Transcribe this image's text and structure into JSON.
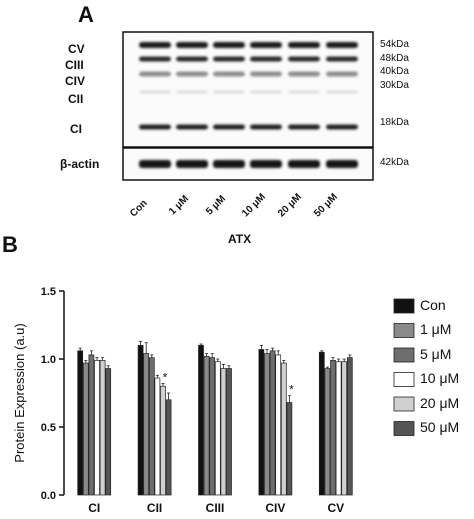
{
  "panelA": {
    "letter": "A",
    "band_labels": [
      "CV",
      "CIII",
      "CIV",
      "CII",
      "CI"
    ],
    "kda_labels": [
      "54kDa",
      "48kDa",
      "40kDa",
      "30kDa",
      "18kDa"
    ],
    "actin_label": "β-actin",
    "actin_kda": "42kDa",
    "lane_labels": [
      "Con",
      "1 μM",
      "5 μM",
      "10 μM",
      "20 μM",
      "50 μM"
    ],
    "treatment_label": "ATX"
  },
  "panelB": {
    "letter": "B"
  },
  "chart_data": {
    "type": "bar",
    "ylabel": "Protein Expression (a.u)",
    "xlabel": "",
    "ylim": [
      0,
      1.5
    ],
    "yticks": [
      "0.0",
      "0.5",
      "1.0",
      "1.5"
    ],
    "categories": [
      "CI",
      "CII",
      "CIII",
      "CIV",
      "CV"
    ],
    "series": [
      {
        "name": "Con",
        "color": "#111111",
        "values": [
          1.06,
          1.1,
          1.1,
          1.07,
          1.05
        ],
        "errors": [
          0.02,
          0.03,
          0.01,
          0.03,
          0.01
        ]
      },
      {
        "name": "1 μM",
        "color": "#8a8a8a",
        "values": [
          0.97,
          1.04,
          1.02,
          1.04,
          0.93
        ],
        "errors": [
          0.02,
          0.08,
          0.02,
          0.03,
          0.01
        ]
      },
      {
        "name": "5 μM",
        "color": "#6e6e6e",
        "values": [
          1.03,
          1.01,
          1.01,
          1.06,
          0.99
        ],
        "errors": [
          0.03,
          0.02,
          0.03,
          0.02,
          0.02
        ]
      },
      {
        "name": "10 μM",
        "color": "#ffffff",
        "values": [
          0.99,
          0.86,
          0.98,
          1.03,
          0.98
        ],
        "errors": [
          0.02,
          0.02,
          0.02,
          0.03,
          0.02
        ]
      },
      {
        "name": "20 μM",
        "color": "#d0d0d0",
        "values": [
          0.99,
          0.8,
          0.93,
          0.97,
          0.98
        ],
        "errors": [
          0.02,
          0.02,
          0.03,
          0.02,
          0.02
        ]
      },
      {
        "name": "50 μM",
        "color": "#555555",
        "values": [
          0.93,
          0.7,
          0.93,
          0.68,
          1.01
        ],
        "errors": [
          0.02,
          0.05,
          0.02,
          0.05,
          0.02
        ]
      }
    ],
    "significance": [
      {
        "category": "CII",
        "series": "20 μM",
        "mark": "*"
      },
      {
        "category": "CIV",
        "series": "50 μM",
        "mark": "*"
      }
    ],
    "legend_position": "right"
  }
}
